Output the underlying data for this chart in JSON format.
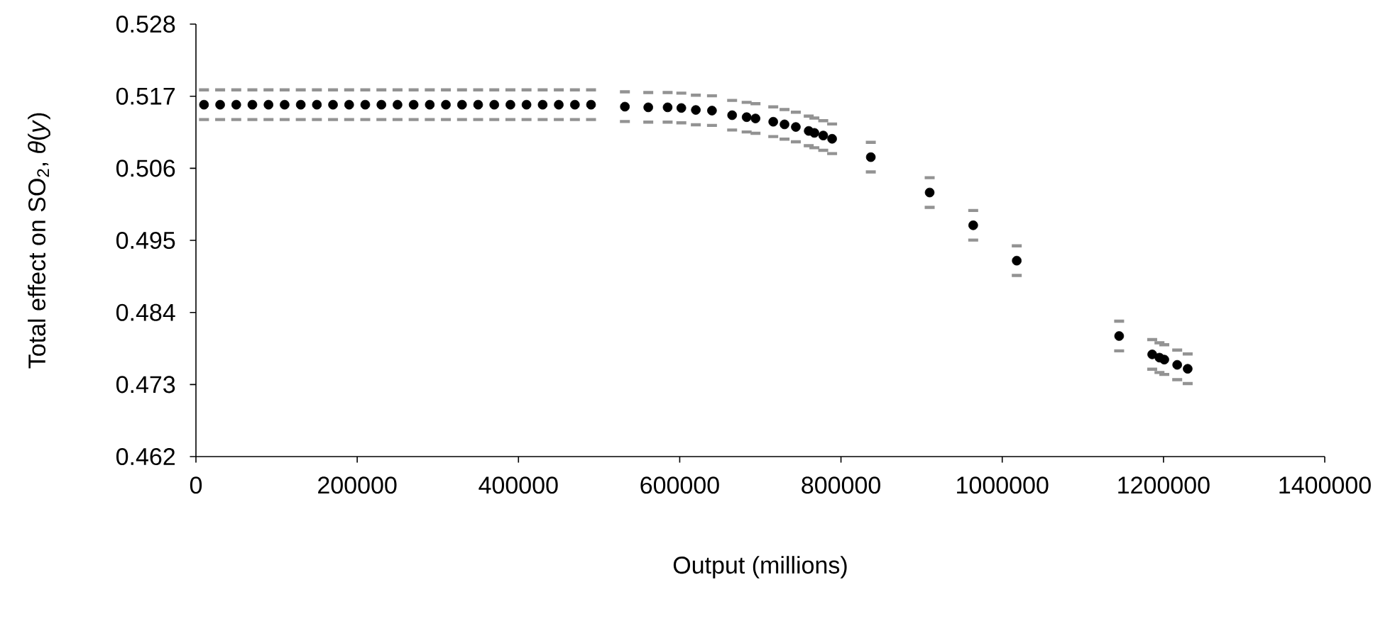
{
  "chart_data": {
    "type": "scatter",
    "xlabel": "Output (millions)",
    "ylabel": "Total effect on SO$_{2}$, *θ*(*y*)",
    "x": [
      10000,
      30000,
      50000,
      70000,
      90000,
      110000,
      130000,
      150000,
      170000,
      190000,
      210000,
      230000,
      250000,
      270000,
      290000,
      310000,
      330000,
      350000,
      370000,
      390000,
      410000,
      430000,
      450000,
      470000,
      490000,
      532000,
      561000,
      585000,
      602000,
      620000,
      640000,
      665000,
      683000,
      694000,
      716000,
      730000,
      744000,
      760000,
      767000,
      778000,
      789000,
      837000,
      910000,
      964000,
      1018000,
      1145000,
      1186000,
      1195000,
      1201000,
      1217000,
      1230000
    ],
    "series": [
      {
        "color": "#000000",
        "values": [
          0.5157,
          0.5157,
          0.5157,
          0.5157,
          0.5157,
          0.5157,
          0.5157,
          0.5157,
          0.5157,
          0.5157,
          0.5157,
          0.5157,
          0.5157,
          0.5157,
          0.5157,
          0.5157,
          0.5157,
          0.5157,
          0.5157,
          0.5157,
          0.5157,
          0.5157,
          0.5157,
          0.5157,
          0.5157,
          0.5154,
          0.5153,
          0.5153,
          0.5152,
          0.5149,
          0.5148,
          0.5141,
          0.5138,
          0.5136,
          0.5131,
          0.5127,
          0.5123,
          0.5117,
          0.5114,
          0.511,
          0.5105,
          0.5077,
          0.5023,
          0.4973,
          0.4919,
          0.4804,
          0.4776,
          0.4771,
          0.4768,
          0.476,
          0.4754
        ],
        "errors": [
          0.0025,
          0.0025,
          0.0025,
          0.0025,
          0.0025,
          0.0025,
          0.0025,
          0.0025,
          0.0025,
          0.0025,
          0.0025,
          0.0025,
          0.0025,
          0.0025,
          0.0025,
          0.0025,
          0.0025,
          0.0025,
          0.0025,
          0.0025,
          0.0025,
          0.0025,
          0.0025,
          0.0025,
          0.0025,
          0.0025,
          0.0025,
          0.0025,
          0.0025,
          0.0025,
          0.0025,
          0.0025,
          0.0025,
          0.0025,
          0.0025,
          0.0025,
          0.0025,
          0.0025,
          0.0025,
          0.0025,
          0.0025,
          0.0025,
          0.0025,
          0.0025,
          0.0025,
          0.0025,
          0.0025,
          0.0025,
          0.0025,
          0.0025,
          0.0025
        ]
      }
    ],
    "xlim": [
      0,
      1400000
    ],
    "xticks": [
      0,
      200000,
      400000,
      600000,
      800000,
      1000000,
      1200000,
      1400000
    ],
    "ylim": [
      0.462,
      0.528
    ],
    "yticks": [
      0.462,
      0.473,
      0.484,
      0.495,
      0.506,
      0.517,
      0.528
    ],
    "grid": false
  }
}
